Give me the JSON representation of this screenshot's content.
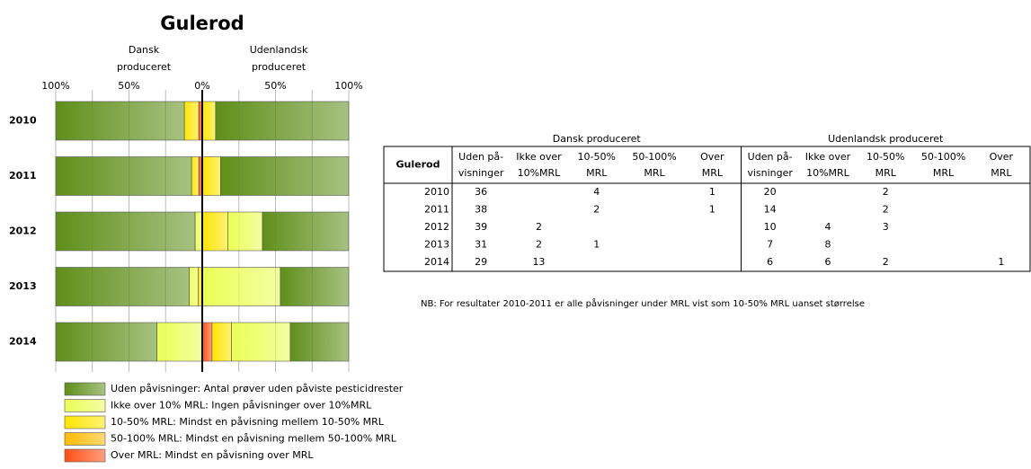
{
  "chart_data": {
    "type": "diverging_bar",
    "title": "Gulerod",
    "side_labels": [
      "Dansk produceret",
      "Udenlandsk produceret"
    ],
    "categories": [
      "2010",
      "2011",
      "2012",
      "2013",
      "2014"
    ],
    "xlim": [
      -100,
      100
    ],
    "xticks": [
      {
        "value": -100,
        "label": "100%"
      },
      {
        "value": -50,
        "label": "50%"
      },
      {
        "value": 0,
        "label": "0%"
      },
      {
        "value": 50,
        "label": "50%"
      },
      {
        "value": 100,
        "label": "100%"
      }
    ],
    "minor_xticks": [
      -75,
      -25,
      25,
      75
    ],
    "series": [
      {
        "name": "Uden påvisninger: Antal prøver uden påviste pesticidrester",
        "color": "#5f8f1a",
        "values": [
          87.8,
          92.7,
          95.1,
          91.2,
          69.0
        ],
        "values_right": [
          90.9,
          87.5,
          58.8,
          46.7,
          40.0
        ]
      },
      {
        "name": "Ikke over 10% MRL: Ingen påvisninger over 10%MRL",
        "color": "#eaff55",
        "values": [
          0,
          0,
          4.9,
          5.9,
          31.0
        ],
        "values_right": [
          0,
          0,
          23.5,
          53.3,
          40.0
        ]
      },
      {
        "name": "10-50% MRL: Mindst en påvisning mellem 10-50% MRL",
        "color": "#ffe600",
        "values": [
          9.8,
          4.9,
          0,
          2.9,
          0
        ],
        "values_right": [
          9.1,
          12.5,
          17.6,
          0,
          13.3
        ]
      },
      {
        "name": "50-100% MRL: Mindst en påvisning mellem 50-100% MRL",
        "color": "#ffbb00",
        "values": [
          0,
          0,
          0,
          0,
          0
        ],
        "values_right": [
          0,
          0,
          0,
          0,
          0
        ]
      },
      {
        "name": "Over MRL:  Mindst en påvisning over MRL",
        "color": "#ff5015",
        "values": [
          2.4,
          2.4,
          0,
          0,
          0
        ],
        "values_right": [
          0,
          0,
          0,
          0,
          6.7
        ]
      }
    ]
  },
  "table": {
    "title": "Gulerod",
    "groups": [
      "Dansk produceret",
      "Udenlandsk produceret"
    ],
    "columns": [
      [
        "Uden på-",
        "visninger"
      ],
      [
        "Ikke over",
        "10%MRL"
      ],
      [
        "10-50%",
        "MRL"
      ],
      [
        "50-100%",
        "MRL"
      ],
      [
        "Over",
        "MRL"
      ],
      [
        "Uden på-",
        "visninger"
      ],
      [
        "Ikke over",
        "10%MRL"
      ],
      [
        "10-50%",
        "MRL"
      ],
      [
        "50-100%",
        "MRL"
      ],
      [
        "Over",
        "MRL"
      ]
    ],
    "rows": [
      [
        2010,
        36,
        null,
        4,
        null,
        1,
        20,
        null,
        2,
        null,
        null
      ],
      [
        2011,
        38,
        null,
        2,
        null,
        1,
        14,
        null,
        2,
        null,
        null
      ],
      [
        2012,
        39,
        2,
        null,
        null,
        null,
        10,
        4,
        3,
        null,
        null
      ],
      [
        2013,
        31,
        2,
        1,
        null,
        null,
        7,
        8,
        null,
        null,
        null
      ],
      [
        2014,
        29,
        13,
        null,
        null,
        null,
        6,
        6,
        2,
        null,
        1
      ]
    ],
    "note": "NB: For resultater 2010-2011 er alle påvisninger under MRL vist som 10-50% MRL uanset størrelse"
  }
}
